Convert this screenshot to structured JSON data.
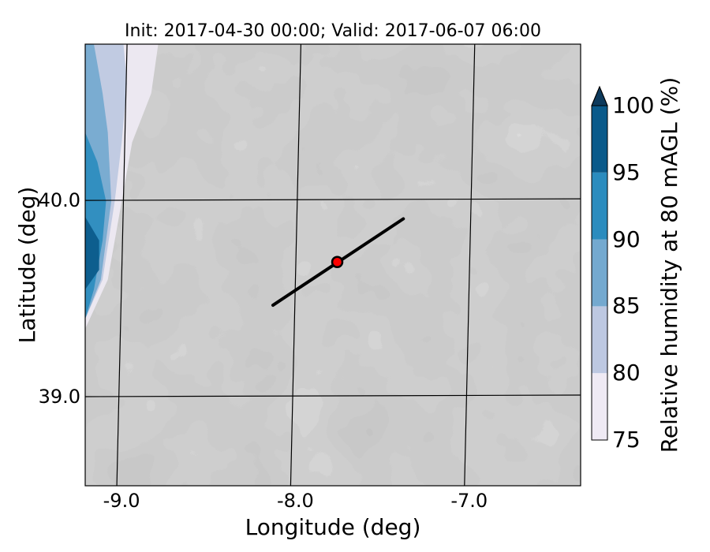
{
  "chart_data": {
    "type": "heatmap",
    "title": "Init: 2017-04-30 00:00; Valid: 2017-06-07 06:00",
    "xlabel": "Longitude (deg)",
    "ylabel": "Latitude (deg)",
    "x_ticks": [
      {
        "label": "-9.0",
        "value": -9.0
      },
      {
        "label": "-8.0",
        "value": -8.0
      },
      {
        "label": "-7.0",
        "value": -7.0
      }
    ],
    "y_ticks": [
      {
        "label": "40.0",
        "value": 40.0
      },
      {
        "label": "39.0",
        "value": 39.0
      }
    ],
    "xlim": [
      -9.2,
      -6.35
    ],
    "ylim": [
      38.55,
      40.8
    ],
    "grid": true,
    "colorbar": {
      "label": "Relative humidity at 80 mAGL (%)",
      "levels": [
        75,
        80,
        85,
        90,
        95,
        100
      ],
      "tick_labels": [
        "75",
        "80",
        "85",
        "90",
        "95",
        "100"
      ],
      "colors": [
        "#efeaf4",
        "#bdc8e1",
        "#74a9cf",
        "#2b8cbe",
        "#0a5a8a"
      ],
      "extend": "max",
      "extend_color": "#0d3a5c"
    },
    "terrain_shading": "grey",
    "cross_section": {
      "start": [
        -8.12,
        39.47
      ],
      "end": [
        -7.37,
        39.91
      ],
      "color": "#000000"
    },
    "marker": {
      "lon": -7.75,
      "lat": 39.69,
      "color": "#ff0000",
      "edge": "#000000"
    }
  }
}
